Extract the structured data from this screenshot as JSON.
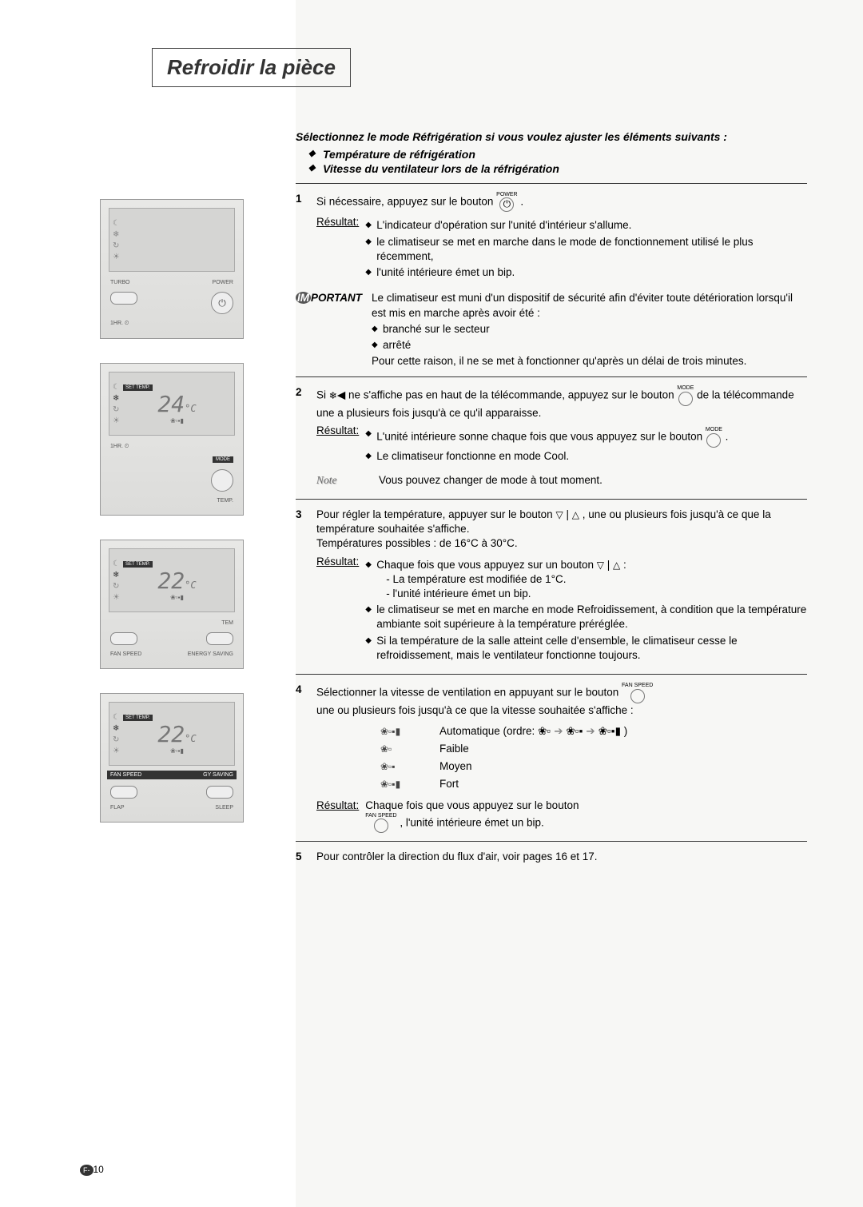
{
  "title": "Refroidir la pièce",
  "intro": "Sélectionnez le mode Réfrigération si vous voulez ajuster les éléments suivants :",
  "intro_items": [
    "Température de réfrigération",
    "Vitesse du ventilateur lors de la réfrigération"
  ],
  "step1": {
    "text": "Si nécessaire, appuyez sur le bouton",
    "btn_label": "POWER",
    "result_label": "Résultat:",
    "results": [
      "L'indicateur d'opération sur l'unité d'intérieur s'allume.",
      "le climatiseur se met en marche dans le mode de fonctionnement utilisé le plus récemment,",
      "l'unité intérieure émet un bip."
    ]
  },
  "important": {
    "label_prefix": "IM",
    "label_rest": "PORTANT",
    "text_a": "Le climatiseur est muni d'un dispositif de sécurité afin d'éviter toute détérioration lorsqu'il est mis en marche après avoir été :",
    "bullets": [
      "branché sur le secteur",
      "arrêté"
    ],
    "text_b": "Pour cette raison, il ne se met à fonctionner qu'après un délai de trois minutes."
  },
  "step2": {
    "text_a": "Si",
    "text_b": "ne s'affiche pas en haut de la télécommande, appuyez sur le bouton",
    "btn_top": "MODE",
    "text_c": "de la télécommande une a plusieurs fois jusqu'à ce qu'il apparaisse.",
    "result_label": "Résultat:",
    "results": [
      "L'unité intérieure sonne chaque fois que vous appuyez sur le bouton",
      "Le climatiseur fonctionne en mode Cool."
    ],
    "note_label": "Note",
    "note_text": "Vous pouvez changer de mode à tout moment."
  },
  "step3": {
    "text_a": "Pour régler la température, appuyer sur le bouton",
    "text_b": ", une ou plusieurs fois jusqu'à ce que la température souhaitée s'affiche.",
    "range": "Températures possibles : de 16°C à  30°C.",
    "result_label": "Résultat:",
    "r1": "Chaque fois que vous appuyez sur un bouton",
    "r1_sub1": "- La température est modifiée de 1°C.",
    "r1_sub2": "- l'unité intérieure émet un bip.",
    "r2": "le climatiseur se met en marche en mode Refroidissement, à condition que la température ambiante soit supérieure à la température préréglée.",
    "r3": "Si la température de la salle atteint celle d'ensemble, le climatiseur cesse le refroidissement, mais le ventilateur fonctionne toujours."
  },
  "step4": {
    "text_a": "Sélectionner la vitesse de ventilation en appuyant sur le bouton",
    "btn_top": "FAN SPEED",
    "text_b": "une ou plusieurs fois jusqu'à ce que la vitesse souhaitée s'affiche :",
    "speeds": [
      {
        "icon": "❀▫▪▮",
        "label": "Automatique (ordre:",
        "seq": [
          "❀▫",
          "❀▫▪",
          "❀▫▪▮"
        ],
        "close": ")"
      },
      {
        "icon": "❀▫",
        "label": "Faible"
      },
      {
        "icon": "❀▫▪",
        "label": "Moyen"
      },
      {
        "icon": "❀▫▪▮",
        "label": "Fort"
      }
    ],
    "result_label": "Résultat:",
    "result_text_a": "Chaque fois que vous appuyez sur le bouton",
    "result_text_b": ", l'unité intérieure émet un bip."
  },
  "step5": {
    "text": "Pour contrôler la direction du flux d'air, voir pages 16 et 17."
  },
  "page_number_prefix": "F-",
  "page_number": "10",
  "remote_figs": {
    "f1": {
      "screen": "",
      "labels": [
        "TURBO",
        "POWER"
      ],
      "bottom": "1HR. ⏲"
    },
    "f2": {
      "temp": "24",
      "set": "SET TEMP.",
      "unit": "°C",
      "bottom1": "1HR. ⏲",
      "mode": "MODE",
      "temp_lbl": "TEMP."
    },
    "f3": {
      "temp": "22",
      "set": "SET TEMP.",
      "unit": "°C",
      "l1": "TEM",
      "l2": "FAN SPEED",
      "l3": "ENERGY SAVING"
    },
    "f4": {
      "temp": "22",
      "set": "SET TEMP.",
      "unit": "°C",
      "l1": "FAN SPEED",
      "l2": "GY SAVING",
      "l3": "FLAP",
      "l4": "SLEEP"
    }
  },
  "icons": {
    "power": "⏻",
    "snowflake": "❄",
    "mode_btn": "◯",
    "down": "▽",
    "up": "△",
    "bar": "|",
    "fan_glyph": "❀"
  },
  "styling": {
    "title_fontsize": 26,
    "body_fontsize": 13.5,
    "page_bg_right": "#f7f7f5",
    "sep_color": "#333",
    "figure_bg": "#e8e8e6"
  }
}
